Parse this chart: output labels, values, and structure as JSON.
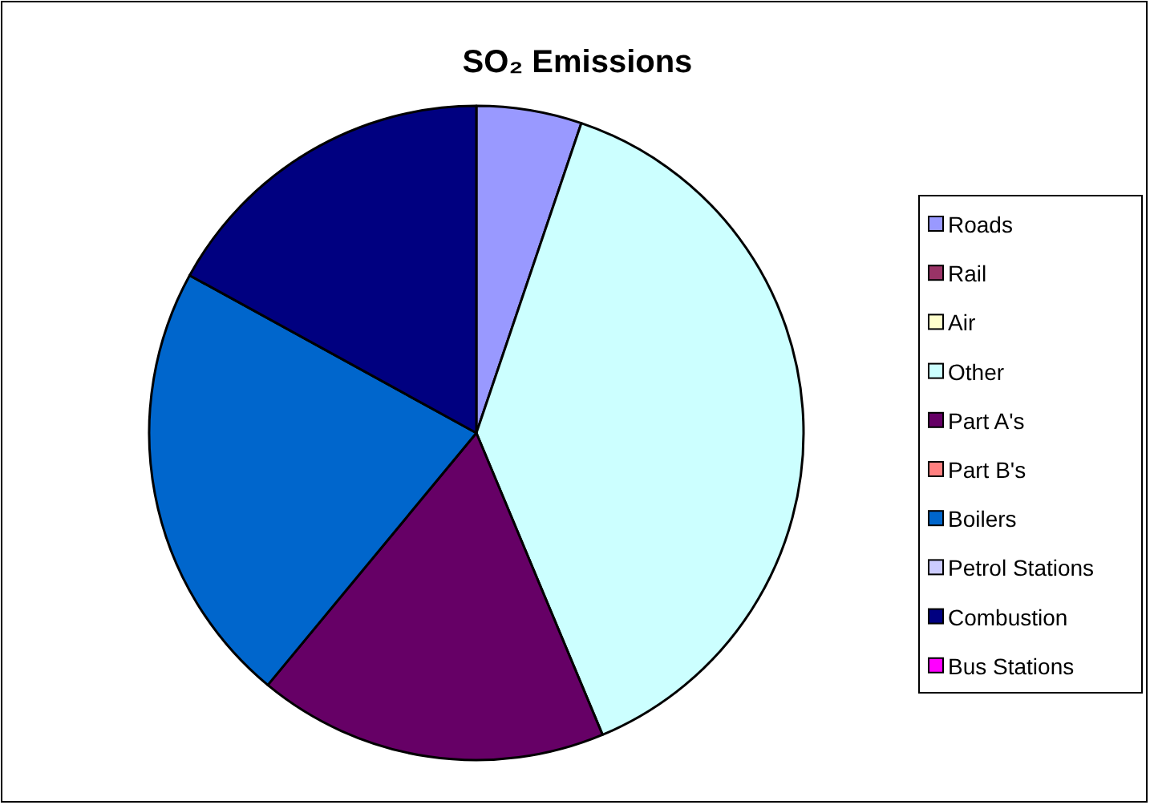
{
  "chart_data": {
    "type": "pie",
    "title": "SO₂ Emissions",
    "categories": [
      "Roads",
      "Rail",
      "Air",
      "Other",
      "Part A's",
      "Part B's",
      "Boilers",
      "Petrol Stations",
      "Combustion",
      "Bus Stations"
    ],
    "values": [
      5.2,
      0,
      0,
      38.5,
      17.3,
      0,
      22.0,
      0,
      17.0,
      0
    ],
    "colors": [
      "#9999ff",
      "#993366",
      "#ffffcc",
      "#ccffff",
      "#660066",
      "#ff8080",
      "#0066cc",
      "#ccccff",
      "#000080",
      "#ff00ff"
    ],
    "legend": "right"
  }
}
